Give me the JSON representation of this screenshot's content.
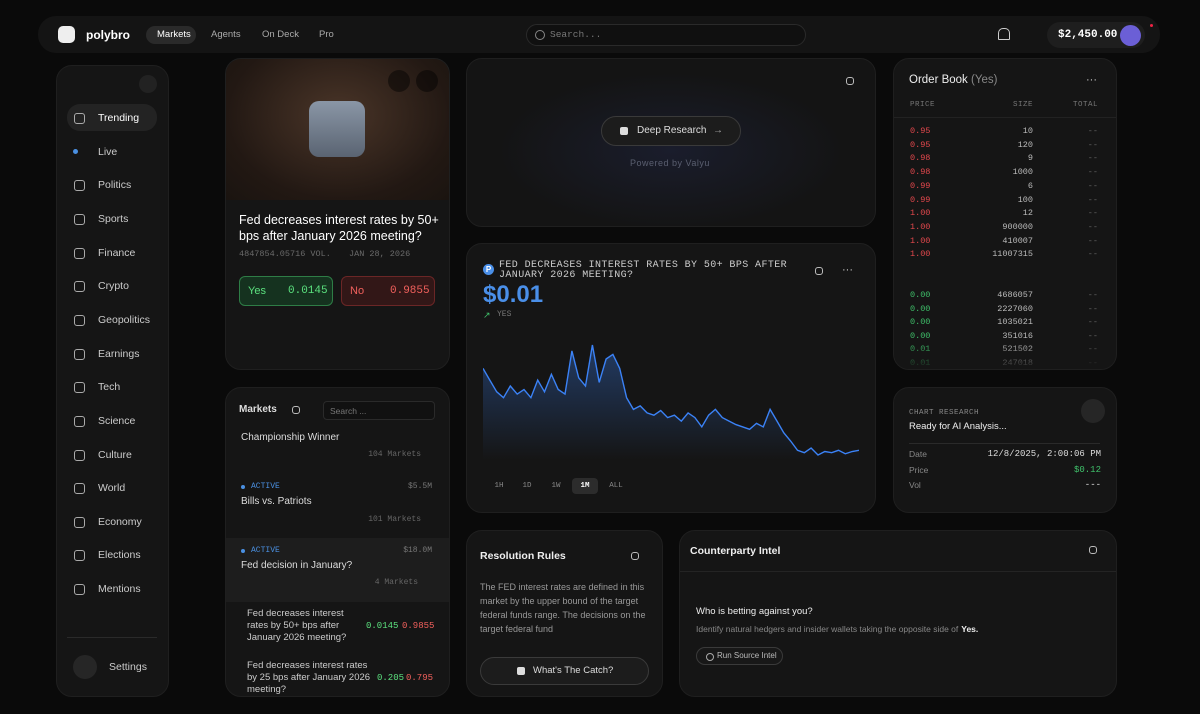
{
  "nav": {
    "brand": "polybro",
    "tabs": [
      "Markets",
      "Agents",
      "On Deck",
      "Pro"
    ],
    "search_placeholder": "Search...",
    "balance": "$2,450.00"
  },
  "sidebar": {
    "items": [
      "Trending",
      "Live",
      "Politics",
      "Sports",
      "Finance",
      "Crypto",
      "Geopolitics",
      "Earnings",
      "Tech",
      "Science",
      "Culture",
      "World",
      "Economy",
      "Elections",
      "Mentions"
    ],
    "settings": "Settings"
  },
  "featured": {
    "title": "Fed decreases interest rates by 50+ bps after January 2026 meeting?",
    "volume": "4847854.05716 VOL.",
    "date": "JAN 28, 2026",
    "yes_label": "Yes",
    "yes_price": "0.0145",
    "no_label": "No",
    "no_price": "0.9855"
  },
  "markets": {
    "title": "Markets",
    "search_placeholder": "Search ...",
    "items": [
      {
        "title": "Championship Winner",
        "count": "104 Markets"
      },
      {
        "status": "ACTIVE",
        "volume": "$5.5M",
        "title": "Bills vs. Patriots",
        "count": "101 Markets"
      },
      {
        "status": "ACTIVE",
        "volume": "$18.0M",
        "title": "Fed decision in January?",
        "count": "4 Markets",
        "submarkets": [
          {
            "title": "Fed decreases interest rates by 50+ bps after January 2026 meeting?",
            "yes": "0.0145",
            "no": "0.9855"
          },
          {
            "title": "Fed decreases interest rates by 25 bps after January 2026 meeting?",
            "yes": "0.205",
            "no": "0.795"
          }
        ]
      }
    ]
  },
  "deep_research": {
    "button": "Deep Research",
    "caption": "Powered by Valyu"
  },
  "price_chart": {
    "type": "line",
    "icon_letter": "P",
    "title": "FED DECREASES INTEREST RATES BY 50+ BPS AFTER JANUARY 2026 MEETING?",
    "price": "$0.01",
    "outcome": "YES",
    "color": "#3b82f6",
    "values": [
      80,
      70,
      60,
      55,
      65,
      58,
      62,
      55,
      70,
      60,
      75,
      62,
      58,
      95,
      72,
      65,
      100,
      68,
      88,
      92,
      80,
      55,
      45,
      48,
      42,
      40,
      44,
      38,
      40,
      35,
      42,
      38,
      30,
      40,
      45,
      38,
      35,
      32,
      30,
      28,
      33,
      30,
      45,
      35,
      25,
      18,
      10,
      8,
      12,
      6,
      9,
      8,
      10,
      7,
      9,
      10
    ],
    "ranges": [
      "1H",
      "1D",
      "1W",
      "1M",
      "ALL"
    ],
    "active_range": "1M"
  },
  "order_book": {
    "title": "Order Book",
    "outcome": "(Yes)",
    "columns": [
      "PRICE",
      "SIZE",
      "TOTAL"
    ],
    "asks": [
      [
        "0.95",
        "10",
        "--"
      ],
      [
        "0.95",
        "120",
        "--"
      ],
      [
        "0.98",
        "9",
        "--"
      ],
      [
        "0.98",
        "1000",
        "--"
      ],
      [
        "0.99",
        "6",
        "--"
      ],
      [
        "0.99",
        "100",
        "--"
      ],
      [
        "1.00",
        "12",
        "--"
      ],
      [
        "1.00",
        "900000",
        "--"
      ],
      [
        "1.00",
        "410007",
        "--"
      ],
      [
        "1.00",
        "11007315",
        "--"
      ]
    ],
    "bids": [
      [
        "0.00",
        "4686057",
        "--"
      ],
      [
        "0.00",
        "2227060",
        "--"
      ],
      [
        "0.00",
        "1035021",
        "--"
      ],
      [
        "0.00",
        "351016",
        "--"
      ],
      [
        "0.01",
        "521502",
        "--"
      ],
      [
        "0.01",
        "247018",
        "--"
      ]
    ]
  },
  "chart_research": {
    "label": "CHART RESEARCH",
    "status": "Ready for AI Analysis...",
    "rows": [
      [
        "Date",
        "12/8/2025, 2:00:06 PM"
      ],
      [
        "Price",
        "$0.12"
      ],
      [
        "Vol",
        "---"
      ]
    ]
  },
  "resolution": {
    "title": "Resolution Rules",
    "text": "The FED interest rates are defined in this market by the upper bound of the target federal funds range. The decisions on the target federal fund",
    "button": "What's The Catch?"
  },
  "counterparty": {
    "title": "Counterparty Intel",
    "question": "Who is betting against you?",
    "description": "Identify natural hedgers and insider wallets taking the opposite side of",
    "highlight": "Yes.",
    "button": "Run Source Intel"
  }
}
